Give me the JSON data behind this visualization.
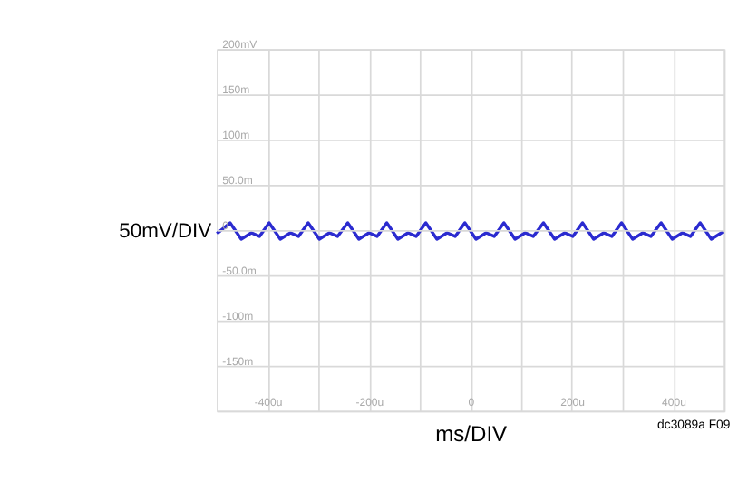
{
  "chart_data": {
    "type": "line",
    "xlabel": "ms/DIV",
    "ylabel": "50mV/DIV",
    "annotations": [
      "dc3089a F09"
    ],
    "x": [
      -500,
      -474,
      -452,
      -432,
      -416,
      -397,
      -375,
      -355,
      -339,
      -320,
      -298,
      -278,
      -262,
      -242,
      -220,
      -200,
      -184,
      -165,
      -143,
      -123,
      -107,
      -88,
      -66,
      -46,
      -30,
      -11,
      11,
      31,
      47,
      66,
      88,
      108,
      124,
      144,
      166,
      186,
      202,
      221,
      243,
      263,
      279,
      298,
      320,
      340,
      356,
      376,
      398,
      418,
      434,
      453,
      475,
      495,
      500
    ],
    "series": [
      {
        "color": "#2b2bd0",
        "values": [
          -4,
          8,
          -10,
          -3,
          -7,
          8,
          -10,
          -3,
          -7,
          8,
          -10,
          -3,
          -7,
          8,
          -10,
          -3,
          -7,
          8,
          -10,
          -3,
          -7,
          8,
          -10,
          -3,
          -7,
          8,
          -10,
          -3,
          -7,
          8,
          -10,
          -3,
          -7,
          8,
          -10,
          -3,
          -7,
          8,
          -10,
          -3,
          -7,
          8,
          -10,
          -3,
          -7,
          8,
          -10,
          -3,
          -7,
          8,
          -10,
          -3,
          -2
        ]
      }
    ],
    "xlim": [
      -500,
      500
    ],
    "xticks": [
      {
        "value": -500,
        "label": null
      },
      {
        "value": -400,
        "label": "-400u"
      },
      {
        "value": -300,
        "label": null
      },
      {
        "value": -200,
        "label": "-200u"
      },
      {
        "value": -100,
        "label": null
      },
      {
        "value": 0,
        "label": "0"
      },
      {
        "value": 100,
        "label": null
      },
      {
        "value": 200,
        "label": "200u"
      },
      {
        "value": 300,
        "label": null
      },
      {
        "value": 400,
        "label": "400u"
      },
      {
        "value": 500,
        "label": null
      }
    ],
    "ylim": [
      -200,
      200
    ],
    "yticks": [
      {
        "value": -200,
        "label": null
      },
      {
        "value": -150,
        "label": "-150m"
      },
      {
        "value": -100,
        "label": "-100m"
      },
      {
        "value": -50,
        "label": "-50.0m"
      },
      0,
      {
        "value": 50,
        "label": "50.0m"
      },
      {
        "value": 100,
        "label": "100m"
      },
      {
        "value": 150,
        "label": "150m"
      },
      {
        "value": 200,
        "label": "200mV"
      }
    ],
    "grid": true,
    "marker": "none",
    "line_style": "solid"
  }
}
